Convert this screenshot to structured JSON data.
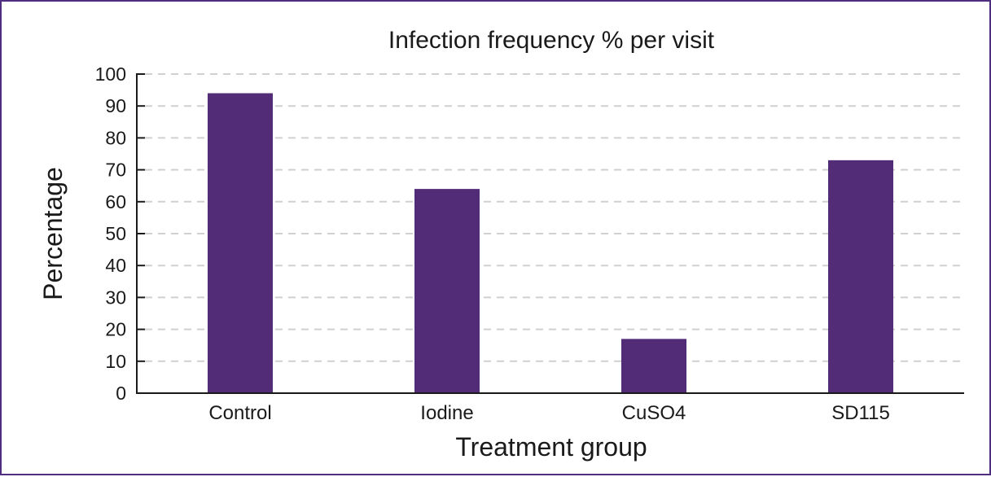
{
  "chart_data": {
    "type": "bar",
    "title": "Infection frequency % per visit",
    "xlabel": "Treatment group",
    "ylabel": "Percentage",
    "categories": [
      "Control",
      "Iodine",
      "CuSO4",
      "SD115"
    ],
    "values": [
      94,
      64,
      17,
      73
    ],
    "ylim": [
      0,
      100
    ],
    "yticks": [
      0,
      10,
      20,
      30,
      40,
      50,
      60,
      70,
      80,
      90,
      100
    ],
    "grid": true,
    "bar_color": "#532c78",
    "border_color": "#4f2d7f"
  }
}
